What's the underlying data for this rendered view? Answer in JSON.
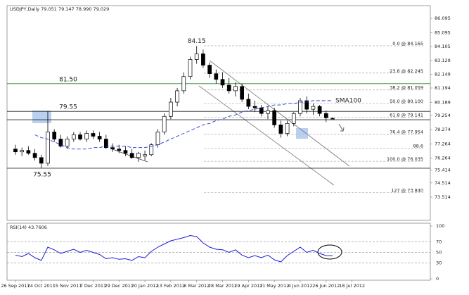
{
  "chart_data": [
    {
      "type": "candlestick",
      "title": "USDJPY,Daily  79.051 79.147 78.990 79.029",
      "xlim": [
        -1.3,
        64.1
      ],
      "xticks": [
        {
          "value": 0,
          "label": "26 Sep 2011"
        },
        {
          "value": 4,
          "label": "24 Oct 2011"
        },
        {
          "value": 8,
          "label": "15 Nov 2011"
        },
        {
          "value": 12,
          "label": "7 Dec 2011"
        },
        {
          "value": 16,
          "label": "29 Dec 2011"
        },
        {
          "value": 20,
          "label": "20 Jan 2012"
        },
        {
          "value": 24,
          "label": "13 Feb 2012"
        },
        {
          "value": 28,
          "label": "6 Mar 2012"
        },
        {
          "value": 32,
          "label": "28 Mar 2012"
        },
        {
          "value": 36,
          "label": "19 Apr 2012"
        },
        {
          "value": 40,
          "label": "11 May 2012"
        },
        {
          "value": 44,
          "label": "4 Jun 2012"
        },
        {
          "value": 48,
          "label": "26 Jun 2012"
        },
        {
          "value": 52,
          "label": "18 Jul 2012"
        }
      ],
      "ylim": [
        71.88,
        86.99
      ],
      "yticks": [
        73.514,
        74.514,
        75.414,
        76.264,
        77.264,
        78.274,
        79.254,
        80.189,
        81.194,
        82.149,
        83.129,
        84.105,
        85.095,
        86.095
      ],
      "open": [
        76.9,
        76.7,
        76.8,
        76.6,
        76.3,
        75.9,
        78.1,
        77.6,
        77.1,
        77.6,
        77.9,
        77.6,
        78.0,
        77.8,
        77.6,
        77.0,
        76.9,
        76.8,
        76.6,
        76.3,
        76.4,
        76.5,
        77.2,
        78.1,
        79.2,
        80.2,
        81.0,
        82.0,
        83.2,
        83.6,
        82.8,
        82.2,
        81.8,
        81.4,
        81.0,
        81.3,
        80.4,
        79.9,
        79.8,
        79.4,
        79.6,
        78.6,
        78.0,
        78.7,
        79.4,
        80.3,
        79.7,
        79.9,
        79.4,
        79.051
      ],
      "high": [
        77.2,
        77.0,
        77.1,
        76.9,
        76.5,
        79.55,
        78.3,
        77.9,
        77.8,
        78.1,
        78.1,
        78.2,
        78.2,
        78.1,
        77.9,
        77.3,
        77.2,
        77.1,
        76.9,
        76.7,
        76.8,
        77.3,
        78.3,
        79.4,
        80.5,
        81.2,
        82.3,
        83.4,
        84.15,
        83.9,
        83.0,
        82.5,
        82.3,
        81.9,
        81.6,
        81.5,
        80.8,
        80.3,
        80.0,
        79.9,
        79.8,
        78.9,
        78.9,
        79.5,
        80.5,
        80.6,
        80.1,
        80.0,
        79.6,
        79.147
      ],
      "low": [
        76.5,
        76.4,
        76.5,
        76.1,
        75.55,
        75.7,
        77.4,
        77.0,
        76.9,
        77.4,
        77.5,
        77.4,
        77.6,
        77.4,
        76.9,
        76.7,
        76.6,
        76.4,
        76.2,
        76.0,
        76.1,
        76.4,
        77.0,
        77.9,
        79.0,
        79.9,
        80.8,
        81.8,
        82.9,
        82.6,
        81.9,
        81.5,
        81.2,
        80.8,
        80.6,
        80.2,
        79.7,
        79.5,
        79.2,
        79.0,
        78.4,
        77.7,
        77.8,
        78.5,
        79.2,
        79.4,
        79.3,
        79.2,
        78.8,
        78.99
      ],
      "close": [
        76.7,
        76.8,
        76.6,
        76.3,
        75.9,
        78.1,
        77.6,
        77.1,
        77.6,
        77.9,
        77.6,
        78.0,
        77.8,
        77.6,
        77.0,
        76.9,
        76.8,
        76.6,
        76.3,
        76.6,
        76.5,
        77.2,
        78.1,
        79.2,
        80.2,
        81.0,
        82.0,
        83.2,
        83.6,
        82.8,
        82.2,
        81.8,
        81.4,
        81.0,
        81.3,
        80.4,
        79.9,
        79.8,
        79.4,
        79.6,
        78.6,
        78.0,
        78.7,
        79.4,
        80.3,
        79.7,
        79.9,
        79.4,
        79.1,
        79.029
      ],
      "overlays": [
        {
          "name": "SMA100",
          "color": "#2233cc",
          "values": [
            null,
            null,
            null,
            77.9,
            77.7,
            77.6,
            77.4,
            77.2,
            77.0,
            76.9,
            76.9,
            76.9,
            77.0,
            77.0,
            77.1,
            77.1,
            77.1,
            77.1,
            77.0,
            77.0,
            77.0,
            77.1,
            77.2,
            77.4,
            77.6,
            77.8,
            78.0,
            78.2,
            78.4,
            78.6,
            78.7,
            78.9,
            79.0,
            79.2,
            79.3,
            79.5,
            79.6,
            79.7,
            79.8,
            79.9,
            80.0,
            80.0,
            80.1,
            80.1,
            80.2,
            80.2,
            80.3,
            80.3,
            80.3,
            80.3
          ]
        }
      ],
      "levels": [
        {
          "value": 81.5,
          "label": "81.50",
          "color": "#1a8a1a",
          "label_color": "#2e8b2e"
        },
        {
          "value": 79.55,
          "label": "79.55",
          "color": "#222222",
          "label_color": "#4a78b4"
        },
        {
          "value": 78.96,
          "color": "#222222"
        },
        {
          "value": 75.55,
          "label": "75.55",
          "color": "#222222",
          "label_color": "#2e8b2e"
        }
      ],
      "annotations": [
        {
          "text": "84.15",
          "value": 84.15
        }
      ],
      "fib_levels": [
        {
          "value": 84.165,
          "label": "0.0 @ 84.165"
        },
        {
          "value": 82.245,
          "label": "23.6 @ 82.245"
        },
        {
          "value": 81.059,
          "label": "38.2 @ 81.059"
        },
        {
          "value": 80.1,
          "label": "50.0 @ 80.100"
        },
        {
          "value": 79.141,
          "label": "61.8 @ 79.141"
        },
        {
          "value": 77.954,
          "label": "76.4 @ 77.954"
        },
        {
          "value": 76.962,
          "label": "88.6"
        },
        {
          "value": 76.035,
          "label": "100.0 @ 76.035"
        },
        {
          "value": 73.84,
          "label": "127 @ 73.840"
        }
      ]
    },
    {
      "type": "line",
      "title": "RSI(14) 43.7606",
      "color": "#1b1bd6",
      "ylim": [
        0,
        100
      ],
      "yticks": [
        0,
        30,
        50,
        70,
        100
      ],
      "values": [
        45,
        42,
        48,
        40,
        35,
        60,
        55,
        48,
        52,
        56,
        50,
        54,
        50,
        46,
        38,
        40,
        37,
        38,
        35,
        42,
        40,
        52,
        60,
        66,
        72,
        75,
        78,
        82,
        80,
        68,
        60,
        56,
        55,
        50,
        55,
        45,
        40,
        44,
        40,
        45,
        36,
        32,
        44,
        52,
        60,
        50,
        54,
        48,
        44,
        43.7606
      ]
    }
  ]
}
